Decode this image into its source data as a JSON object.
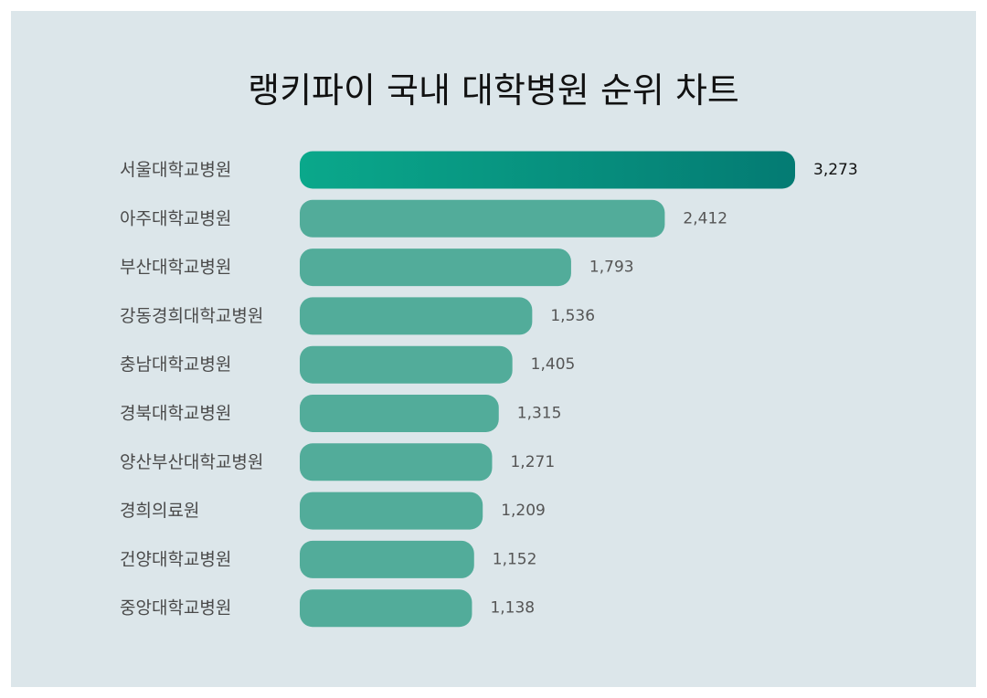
{
  "chart_data": {
    "type": "bar",
    "orientation": "horizontal",
    "title": "랭키파이 국내 대학병원 순위 차트",
    "categories": [
      "서울대학교병원",
      "아주대학교병원",
      "부산대학교병원",
      "강동경희대학교병원",
      "충남대학교병원",
      "경북대학교병원",
      "양산부산대학교병원",
      "경희의료원",
      "건양대학교병원",
      "중앙대학교병원"
    ],
    "values": [
      3273,
      2412,
      1793,
      1536,
      1405,
      1315,
      1271,
      1209,
      1152,
      1138
    ],
    "value_labels": [
      "3,273",
      "2,412",
      "1,793",
      "1,536",
      "1,405",
      "1,315",
      "1,271",
      "1,209",
      "1,152",
      "1,138"
    ],
    "xlim": [
      0,
      3273
    ],
    "grid": false,
    "legend": "none",
    "colors": {
      "bar": "#52ac9a",
      "top_bar_start": "#0aa88b",
      "top_bar_end": "#047b73",
      "background": "#dce6ea"
    }
  }
}
